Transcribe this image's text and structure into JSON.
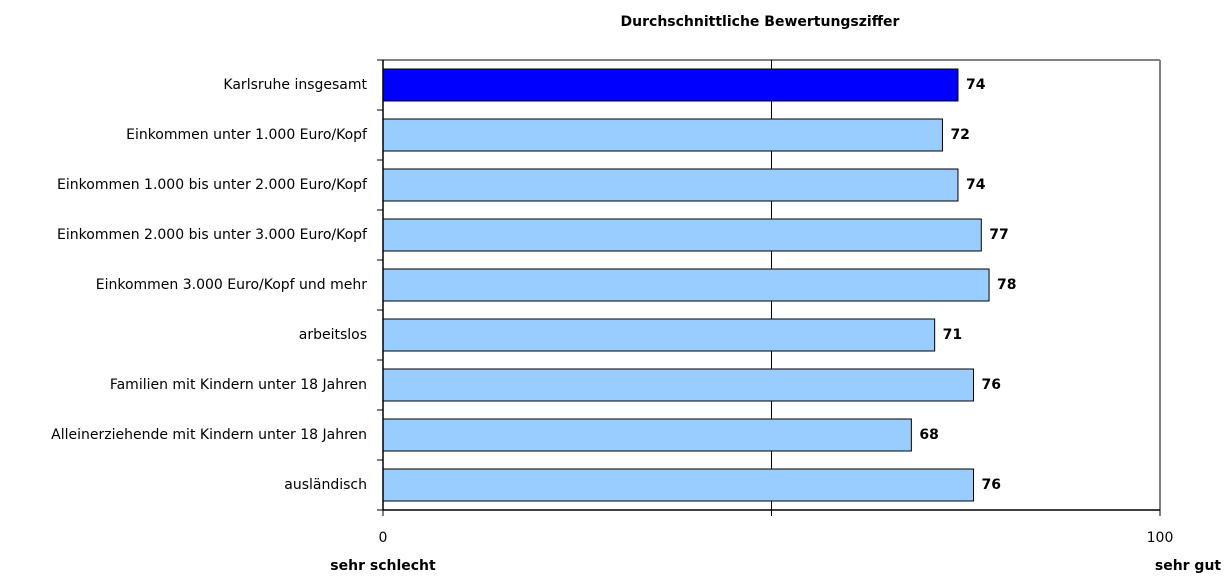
{
  "chart_data": {
    "type": "hbar",
    "title": "Durchschnittliche Bewertungsziffer",
    "categories": [
      "Karlsruhe insgesamt",
      "Einkommen unter 1.000 Euro/Kopf",
      "Einkommen 1.000 bis unter 2.000 Euro/Kopf",
      "Einkommen 2.000 bis unter 3.000 Euro/Kopf",
      "Einkommen 3.000 Euro/Kopf und mehr",
      "arbeitslos",
      "Familien mit Kindern unter 18 Jahren",
      "Alleinerziehende mit Kindern unter 18 Jahren",
      "ausländisch"
    ],
    "values": [
      74,
      72,
      74,
      77,
      78,
      71,
      76,
      68,
      76
    ],
    "colors": [
      "#0000ff",
      "#99ccff",
      "#99ccff",
      "#99ccff",
      "#99ccff",
      "#99ccff",
      "#99ccff",
      "#99ccff",
      "#99ccff"
    ],
    "xlim": [
      0,
      100
    ],
    "xticks": [
      0,
      100
    ],
    "gridlines": [
      50
    ],
    "xlabel_left": "sehr schlecht",
    "xlabel_right": "sehr gut"
  }
}
